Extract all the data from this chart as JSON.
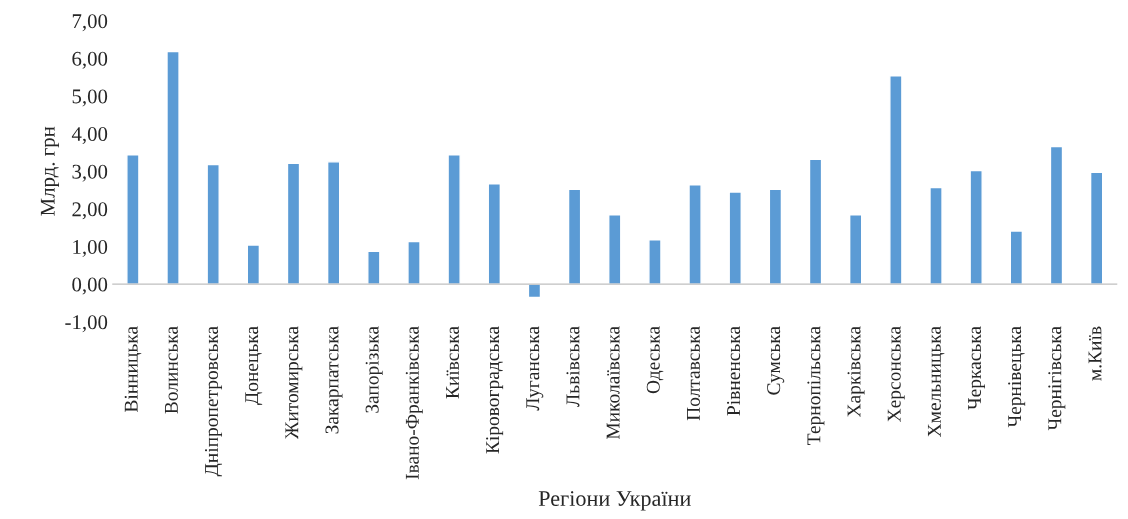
{
  "chart_data": {
    "type": "bar",
    "xlabel": "Регіони України",
    "ylabel": "Млрд. грн",
    "categories": [
      "Вінницька",
      "Волинська",
      "Дніпропетровська",
      "Донецька",
      "Житомирська",
      "Закарпатська",
      "Запорізька",
      "Івано-Франківська",
      "Київська",
      "Кіровоградська",
      "Луганська",
      "Львівська",
      "Миколаївська",
      "Одеська",
      "Полтавська",
      "Рівненська",
      "Сумська",
      "Тернопільська",
      "Харківська",
      "Херсонська",
      "Хмельницька",
      "Черкаська",
      "Чернівецька",
      "Чернігівська",
      "м.Київ"
    ],
    "values": [
      3.44,
      6.18,
      3.18,
      1.04,
      3.21,
      3.25,
      0.87,
      1.13,
      3.44,
      2.67,
      -0.35,
      2.52,
      1.84,
      1.18,
      2.64,
      2.45,
      2.52,
      3.32,
      1.84,
      5.54,
      2.57,
      3.02,
      1.41,
      3.66,
      2.97
    ],
    "color": "#5b9bd5",
    "ylim": [
      -1,
      7
    ],
    "yticks": [
      {
        "value": -1,
        "label": "-1,00"
      },
      {
        "value": 0,
        "label": "0,00"
      },
      {
        "value": 1,
        "label": "1,00"
      },
      {
        "value": 2,
        "label": "2,00"
      },
      {
        "value": 3,
        "label": "3,00"
      },
      {
        "value": 4,
        "label": "4,00"
      },
      {
        "value": 5,
        "label": "5,00"
      },
      {
        "value": 6,
        "label": "6,00"
      },
      {
        "value": 7,
        "label": "7,00"
      }
    ],
    "grid": false,
    "legend": false
  }
}
